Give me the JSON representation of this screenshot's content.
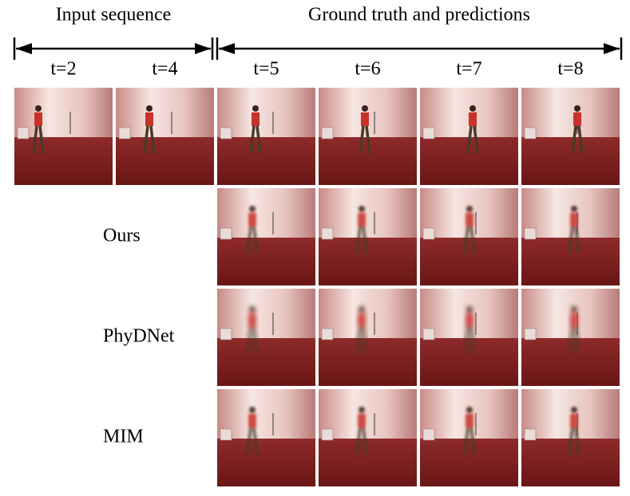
{
  "header": {
    "input_label": "Input sequence",
    "output_label": "Ground truth and predictions"
  },
  "time_steps": {
    "input": [
      "t=2",
      "t=4"
    ],
    "output": [
      "t=5",
      "t=6",
      "t=7",
      "t=8"
    ]
  },
  "rows": [
    "Ours",
    "PhyDNet",
    "MIM"
  ]
}
